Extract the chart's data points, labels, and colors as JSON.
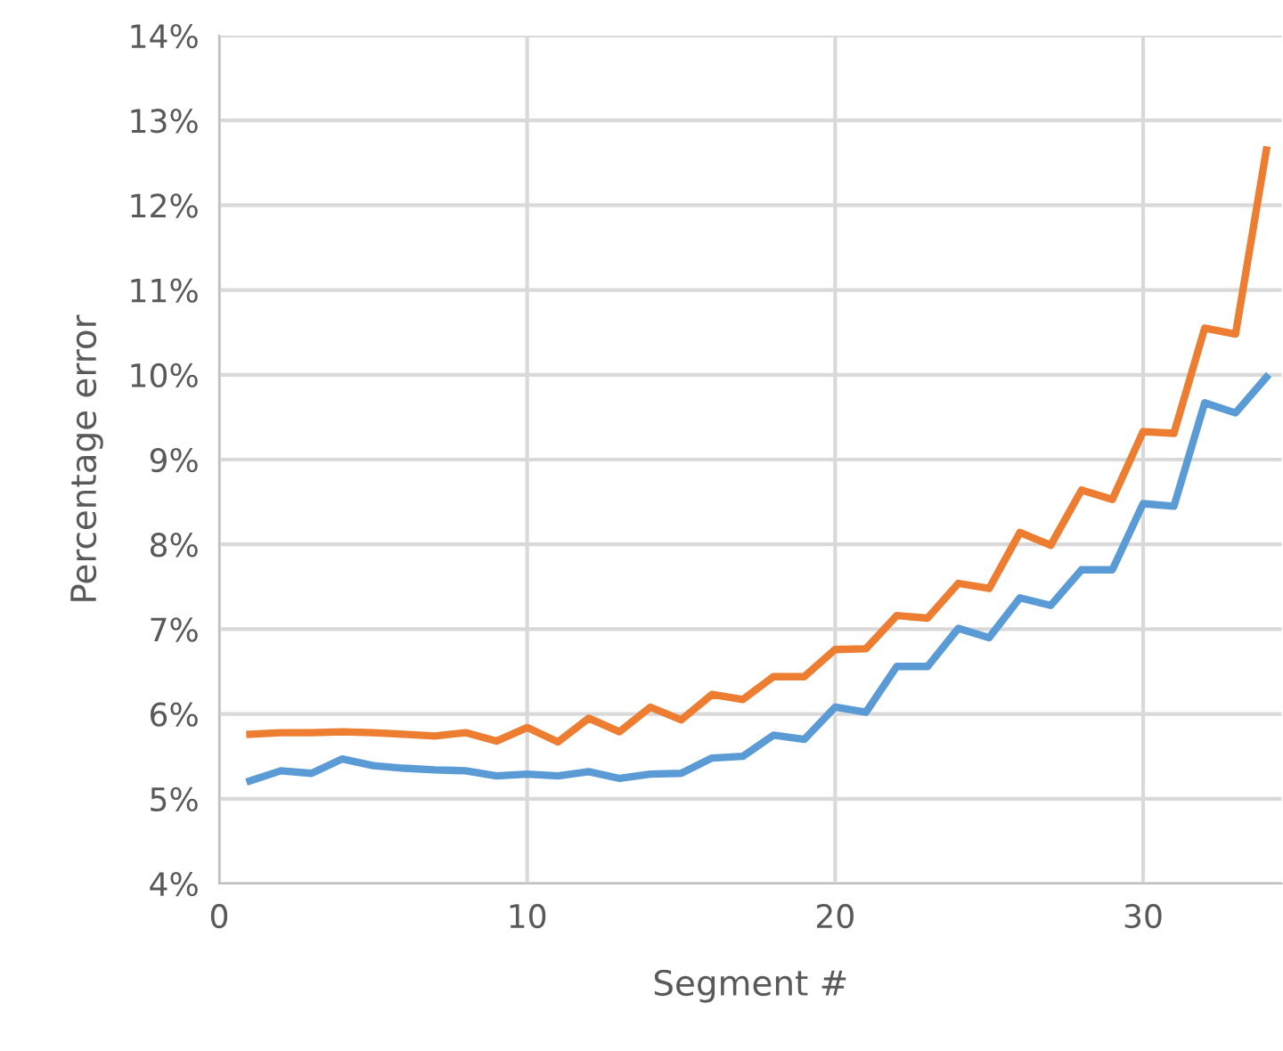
{
  "chart_data": {
    "type": "line",
    "xlabel": "Segment #",
    "ylabel": "Percentage error",
    "x": [
      1,
      2,
      3,
      4,
      5,
      6,
      7,
      8,
      9,
      10,
      11,
      12,
      13,
      14,
      15,
      16,
      17,
      18,
      19,
      20,
      21,
      22,
      23,
      24,
      25,
      26,
      27,
      28,
      29,
      30,
      31,
      32,
      33,
      34
    ],
    "series": [
      {
        "color": "#5b9bd5",
        "values": [
          5.21,
          5.33,
          5.3,
          5.47,
          5.39,
          5.36,
          5.34,
          5.33,
          5.27,
          5.29,
          5.27,
          5.32,
          5.24,
          5.29,
          5.3,
          5.48,
          5.5,
          5.75,
          5.7,
          6.08,
          6.02,
          6.56,
          6.56,
          7.01,
          6.9,
          7.37,
          7.28,
          7.7,
          7.7,
          8.48,
          8.45,
          9.67,
          9.55,
          9.97
        ]
      },
      {
        "color": "#ed7d31",
        "values": [
          5.76,
          5.78,
          5.78,
          5.79,
          5.78,
          5.76,
          5.74,
          5.78,
          5.68,
          5.84,
          5.67,
          5.95,
          5.79,
          6.08,
          5.93,
          6.23,
          6.17,
          6.44,
          6.44,
          6.76,
          6.77,
          7.16,
          7.13,
          7.54,
          7.48,
          8.14,
          7.99,
          8.64,
          8.53,
          9.33,
          9.31,
          10.55,
          10.48,
          12.65
        ]
      }
    ],
    "xlim": [
      0,
      34.5
    ],
    "xticks": [
      0,
      10,
      20,
      30
    ],
    "ylim": [
      4,
      14
    ],
    "yticks": [
      {
        "value": 4,
        "label": "4%"
      },
      {
        "value": 5,
        "label": "5%"
      },
      {
        "value": 6,
        "label": "6%"
      },
      {
        "value": 7,
        "label": "7%"
      },
      {
        "value": 8,
        "label": "8%"
      },
      {
        "value": 9,
        "label": "9%"
      },
      {
        "value": 10,
        "label": "10%"
      },
      {
        "value": 11,
        "label": "11%"
      },
      {
        "value": 12,
        "label": "12%"
      },
      {
        "value": 13,
        "label": "13%"
      },
      {
        "value": 14,
        "label": "14%"
      }
    ],
    "grid": true
  }
}
